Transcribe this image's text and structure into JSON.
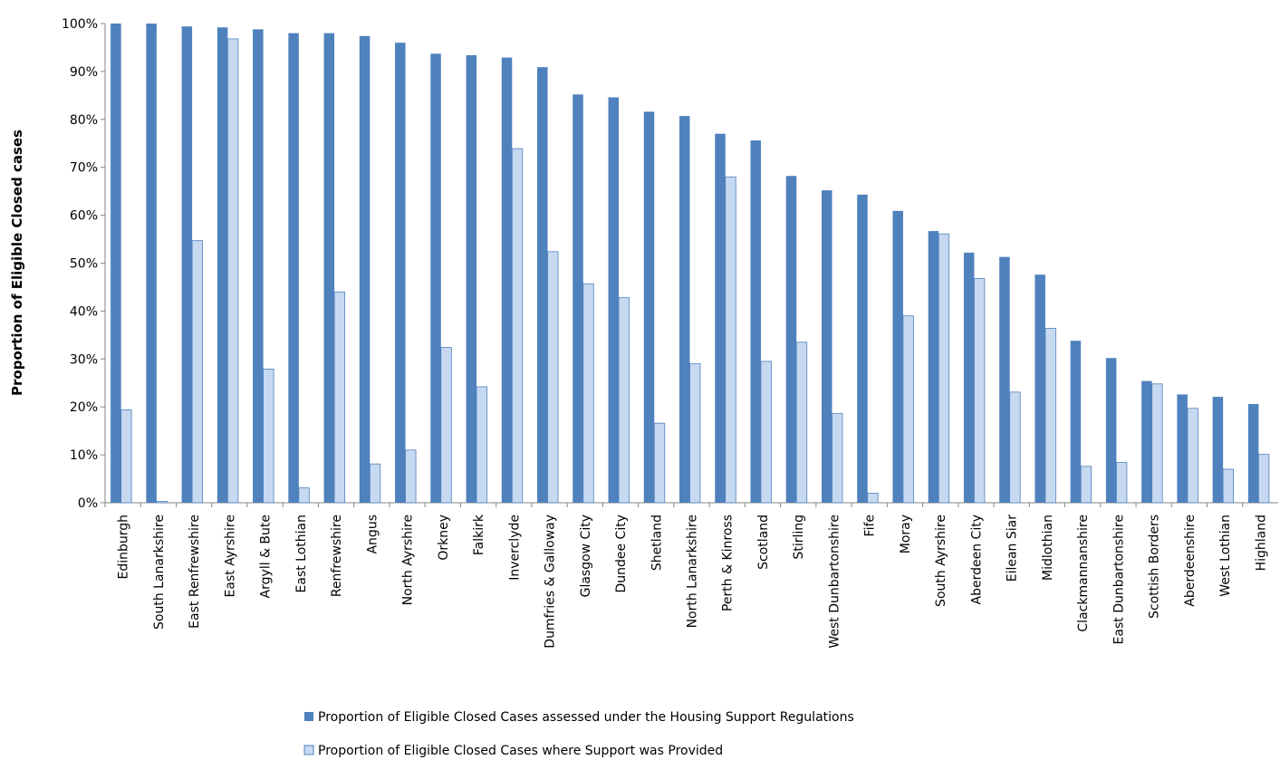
{
  "chart_data": {
    "type": "bar",
    "y_label": "Proportion of Eligible Closed cases",
    "categories": [
      "Edinburgh",
      "South Lanarkshire",
      "East Renfrewshire",
      "East Ayrshire",
      "Argyll & Bute",
      "East Lothian",
      "Renfrewshire",
      "Angus",
      "North Ayrshire",
      "Orkney",
      "Falkirk",
      "Inverclyde",
      "Dumfries & Galloway",
      "Glasgow City",
      "Dundee City",
      "Shetland",
      "North Lanarkshire",
      "Perth & Kinross",
      "Scotland",
      "Stirling",
      "West Dunbartonshire",
      "Fife",
      "Moray",
      "South Ayrshire",
      "Aberdeen City",
      "Eilean Siar",
      "Midlothian",
      "Clackmannanshire",
      "East Dunbartonshire",
      "Scottish Borders",
      "Aberdeenshire",
      "West Lothian",
      "Highland"
    ],
    "series": [
      {
        "name": "Proportion of Eligible Closed Cases assessed under the Housing Support Regulations",
        "color": "#4f81bd",
        "values": [
          100,
          100,
          99.4,
          99.2,
          98.8,
          98,
          98,
          97.4,
          96,
          93.7,
          93.4,
          92.9,
          90.9,
          85.2,
          84.6,
          81.6,
          80.7,
          77,
          75.6,
          68.2,
          65.2,
          64.3,
          60.9,
          56.7,
          52.2,
          51.3,
          47.6,
          33.8,
          30.2,
          25.4,
          22.6,
          22.1,
          20.6
        ]
      },
      {
        "name": "Proportion of Eligible Closed Cases where Support was Provided",
        "color": "#c6d9f1",
        "values": [
          19.4,
          0.3,
          54.7,
          96.8,
          27.9,
          3.1,
          44,
          8.1,
          11,
          32.4,
          24.2,
          73.9,
          52.4,
          45.7,
          42.8,
          16.6,
          29,
          68,
          29.5,
          33.5,
          18.6,
          2,
          39,
          56.1,
          46.8,
          23.1,
          36.4,
          7.6,
          8.4,
          24.8,
          19.7,
          7,
          10.1
        ]
      }
    ],
    "ylim": [
      0,
      100
    ],
    "yticks": [
      {
        "value": 0,
        "label": "0%"
      },
      {
        "value": 10,
        "label": "10%"
      },
      {
        "value": 20,
        "label": "20%"
      },
      {
        "value": 30,
        "label": "30%"
      },
      {
        "value": 40,
        "label": "40%"
      },
      {
        "value": 50,
        "label": "50%"
      },
      {
        "value": 60,
        "label": "60%"
      },
      {
        "value": 70,
        "label": "70%"
      },
      {
        "value": 80,
        "label": "80%"
      },
      {
        "value": 90,
        "label": "90%"
      },
      {
        "value": 100,
        "label": "100%"
      }
    ],
    "grid": false
  }
}
